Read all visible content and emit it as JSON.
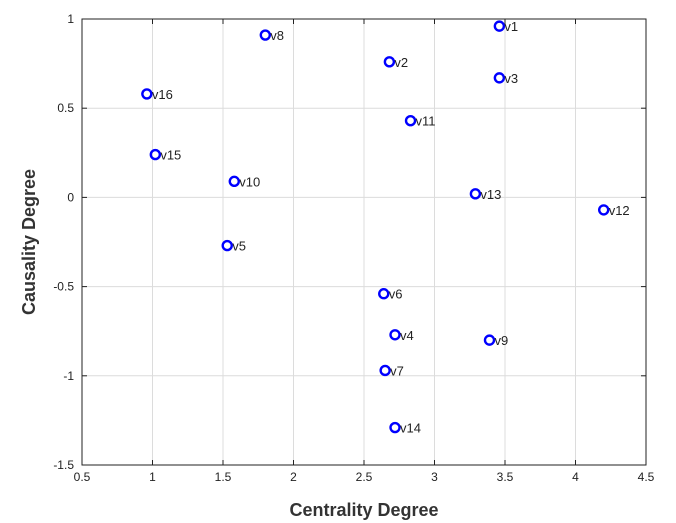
{
  "chart_data": {
    "type": "scatter",
    "xlabel": "Centrality Degree",
    "ylabel": "Causality Degree",
    "xlim": [
      0.5,
      4.5
    ],
    "ylim": [
      -1.5,
      1
    ],
    "x_ticks": [
      0.5,
      1,
      1.5,
      2,
      2.5,
      3,
      3.5,
      4,
      4.5
    ],
    "x_tick_labels": [
      "0.5",
      "1",
      "1.5",
      "2",
      "2.5",
      "3",
      "3.5",
      "4",
      "4.5"
    ],
    "y_ticks": [
      -1.5,
      -1,
      -0.5,
      0,
      0.5,
      1
    ],
    "y_tick_labels": [
      "-1.5",
      "-1",
      "-0.5",
      "0",
      "0.5",
      "1"
    ],
    "grid": true,
    "marker": "open-circle",
    "marker_color": "#0000ff",
    "points": [
      {
        "label": "v1",
        "x": 3.46,
        "y": 0.96
      },
      {
        "label": "v2",
        "x": 2.68,
        "y": 0.76
      },
      {
        "label": "v3",
        "x": 3.46,
        "y": 0.67
      },
      {
        "label": "v4",
        "x": 2.72,
        "y": -0.77
      },
      {
        "label": "v5",
        "x": 1.53,
        "y": -0.27
      },
      {
        "label": "v6",
        "x": 2.64,
        "y": -0.54
      },
      {
        "label": "v7",
        "x": 2.65,
        "y": -0.97
      },
      {
        "label": "v8",
        "x": 1.8,
        "y": 0.91
      },
      {
        "label": "v9",
        "x": 3.39,
        "y": -0.8
      },
      {
        "label": "v10",
        "x": 1.58,
        "y": 0.09
      },
      {
        "label": "v11",
        "x": 2.83,
        "y": 0.43
      },
      {
        "label": "v12",
        "x": 4.2,
        "y": -0.07
      },
      {
        "label": "v13",
        "x": 3.29,
        "y": 0.02
      },
      {
        "label": "v14",
        "x": 2.72,
        "y": -1.29
      },
      {
        "label": "v15",
        "x": 1.02,
        "y": 0.24
      },
      {
        "label": "v16",
        "x": 0.96,
        "y": 0.58
      }
    ]
  }
}
